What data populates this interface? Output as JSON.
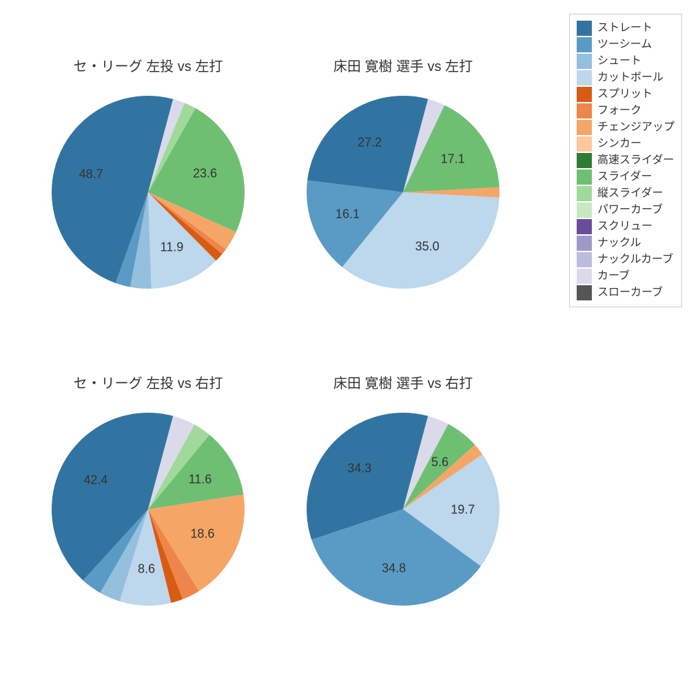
{
  "colors": {
    "straight": "#3274a1",
    "twoSeam": "#5a9bc5",
    "shoot": "#94c0dd",
    "cutball": "#bdd7ec",
    "split": "#d85b13",
    "fork": "#ee854a",
    "changeup": "#f5a667",
    "sinker": "#fbc79e",
    "fastSlider": "#2e7d32",
    "slider": "#6fbf73",
    "vSlider": "#a1d99b",
    "powerCurve": "#c7e9c0",
    "screw": "#6b4c9a",
    "knuckle": "#9e9ac8",
    "knuckleCurve": "#bcbddc",
    "curve": "#dadaeb",
    "slowCurve": "#555555"
  },
  "legend": {
    "items": [
      {
        "key": "straight",
        "label": "ストレート"
      },
      {
        "key": "twoSeam",
        "label": "ツーシーム"
      },
      {
        "key": "shoot",
        "label": "シュート"
      },
      {
        "key": "cutball",
        "label": "カットボール"
      },
      {
        "key": "split",
        "label": "スプリット"
      },
      {
        "key": "fork",
        "label": "フォーク"
      },
      {
        "key": "changeup",
        "label": "チェンジアップ"
      },
      {
        "key": "sinker",
        "label": "シンカー"
      },
      {
        "key": "fastSlider",
        "label": "高速スライダー"
      },
      {
        "key": "slider",
        "label": "スライダー"
      },
      {
        "key": "vSlider",
        "label": "縦スライダー"
      },
      {
        "key": "powerCurve",
        "label": "パワーカーブ"
      },
      {
        "key": "screw",
        "label": "スクリュー"
      },
      {
        "key": "knuckle",
        "label": "ナックル"
      },
      {
        "key": "knuckleCurve",
        "label": "ナックルカーブ"
      },
      {
        "key": "curve",
        "label": "カーブ"
      },
      {
        "key": "slowCurve",
        "label": "スローカーブ"
      }
    ]
  },
  "charts": [
    {
      "id": "topLeft",
      "title": "セ・リーグ 左投 vs 左打",
      "slices": [
        {
          "key": "straight",
          "value": 48.7,
          "label": "48.7"
        },
        {
          "key": "twoSeam",
          "value": 2.5
        },
        {
          "key": "shoot",
          "value": 3.5
        },
        {
          "key": "cutball",
          "value": 11.9,
          "label": "11.9"
        },
        {
          "key": "split",
          "value": 1.5
        },
        {
          "key": "fork",
          "value": 1.0
        },
        {
          "key": "changeup",
          "value": 3.3
        },
        {
          "key": "slider",
          "value": 23.6,
          "label": "23.6"
        },
        {
          "key": "vSlider",
          "value": 2.0
        },
        {
          "key": "curve",
          "value": 2.0
        }
      ]
    },
    {
      "id": "topRight",
      "title": "床田 寛樹 選手 vs 左打",
      "slices": [
        {
          "key": "straight",
          "value": 27.2,
          "label": "27.2"
        },
        {
          "key": "twoSeam",
          "value": 16.1,
          "label": "16.1"
        },
        {
          "key": "cutball",
          "value": 35.0,
          "label": "35.0"
        },
        {
          "key": "changeup",
          "value": 1.7
        },
        {
          "key": "slider",
          "value": 17.1,
          "label": "17.1"
        },
        {
          "key": "curve",
          "value": 2.9
        }
      ]
    },
    {
      "id": "botLeft",
      "title": "セ・リーグ 左投 vs 右打",
      "slices": [
        {
          "key": "straight",
          "value": 42.4,
          "label": "42.4"
        },
        {
          "key": "twoSeam",
          "value": 3.5
        },
        {
          "key": "shoot",
          "value": 3.5
        },
        {
          "key": "cutball",
          "value": 8.6,
          "label": "8.6"
        },
        {
          "key": "split",
          "value": 2.0
        },
        {
          "key": "fork",
          "value": 3.0
        },
        {
          "key": "changeup",
          "value": 18.6,
          "label": "18.6"
        },
        {
          "key": "slider",
          "value": 11.6,
          "label": "11.6"
        },
        {
          "key": "vSlider",
          "value": 3.0
        },
        {
          "key": "curve",
          "value": 3.8
        }
      ]
    },
    {
      "id": "botRight",
      "title": "床田 寛樹 選手 vs 右打",
      "slices": [
        {
          "key": "straight",
          "value": 34.3,
          "label": "34.3"
        },
        {
          "key": "twoSeam",
          "value": 34.8,
          "label": "34.8"
        },
        {
          "key": "cutball",
          "value": 19.7,
          "label": "19.7"
        },
        {
          "key": "changeup",
          "value": 2.0
        },
        {
          "key": "slider",
          "value": 5.6,
          "label": "5.6"
        },
        {
          "key": "curve",
          "value": 3.6
        }
      ]
    }
  ],
  "style": {
    "pieRadius": 140,
    "labelRadiusFrac": 0.62,
    "startAngleDeg": 75,
    "direction": "ccw",
    "titleFontSize": 20,
    "labelFontSize": 18,
    "legendFontSize": 16,
    "background": "#ffffff"
  }
}
